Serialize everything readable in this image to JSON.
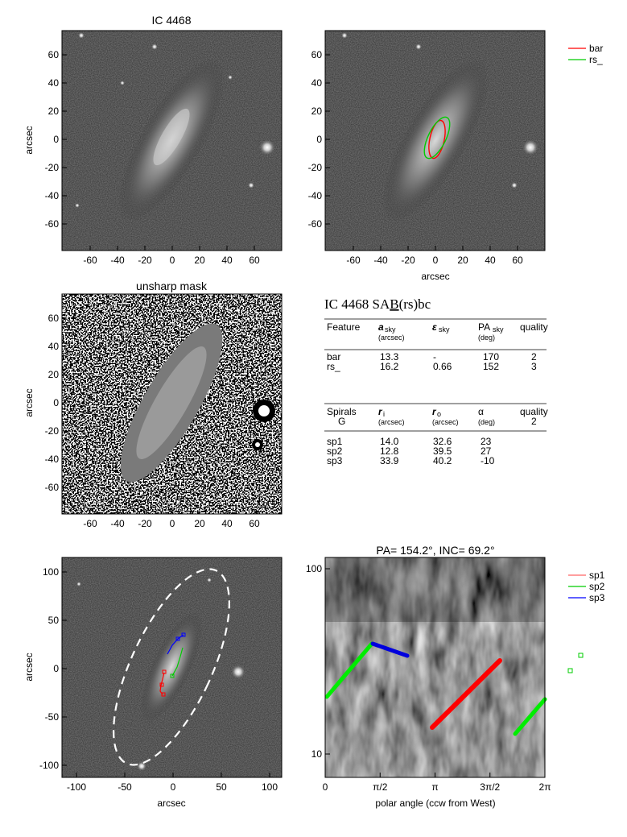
{
  "panel1": {
    "title": "IC 4468",
    "ylabel": "arcsec",
    "xticks": [
      "-60",
      "-40",
      "-20",
      "0",
      "20",
      "40",
      "60"
    ],
    "yticks": [
      "60",
      "40",
      "20",
      "0",
      "-20",
      "-40",
      "-60"
    ]
  },
  "panel2": {
    "xlabel": "arcsec",
    "xticks": [
      "-60",
      "-40",
      "-20",
      "0",
      "20",
      "40",
      "60"
    ],
    "yticks": [
      "60",
      "40",
      "20",
      "0",
      "-20",
      "-40",
      "-60"
    ],
    "legend": [
      {
        "label": "bar",
        "color": "#ff0000"
      },
      {
        "label": "rs_",
        "color": "#00cc00"
      }
    ]
  },
  "panel3": {
    "title": "unsharp mask",
    "ylabel": "arcsec",
    "xticks": [
      "-60",
      "-40",
      "-20",
      "0",
      "20",
      "40",
      "60"
    ],
    "yticks": [
      "60",
      "40",
      "20",
      "0",
      "-20",
      "-40",
      "-60"
    ]
  },
  "table": {
    "heading": "IC 4468  SA",
    "heading_b": "B",
    "heading_tail": "(rs)bc",
    "features_header": {
      "c1": "Feature",
      "c2": "a",
      "c2sub": "sky",
      "c2unit": "(arcsec)",
      "c3": "ε",
      "c3sub": "sky",
      "c4": "PA",
      "c4sub": "sky",
      "c4unit": "(deg)",
      "c5": "quality"
    },
    "features": [
      {
        "name": "bar",
        "a": "13.3",
        "e": "-",
        "pa": "170",
        "q": "2"
      },
      {
        "name": "rs_",
        "a": "16.2",
        "e": "0.66",
        "pa": "152",
        "q": "3"
      }
    ],
    "spirals_header": {
      "c1": "Spirals",
      "c1b": "G",
      "c2": "r",
      "c2sub": "i",
      "c2unit": "(arcsec)",
      "c3": "r",
      "c3sub": "o",
      "c3unit": "(arcsec)",
      "c4": "α",
      "c4unit": "(deg)",
      "c5": "quality",
      "c5b": "2"
    },
    "spirals": [
      {
        "name": "sp1",
        "ri": "14.0",
        "ro": "32.6",
        "alpha": "23"
      },
      {
        "name": "sp2",
        "ri": "12.8",
        "ro": "39.5",
        "alpha": "27"
      },
      {
        "name": "sp3",
        "ri": "33.9",
        "ro": "40.2",
        "alpha": "-10"
      }
    ]
  },
  "panel5": {
    "xlabel": "arcsec",
    "ylabel": "arcsec",
    "xticks": [
      "-100",
      "-50",
      "0",
      "50",
      "100"
    ],
    "yticks": [
      "100",
      "50",
      "0",
      "-50",
      "-100"
    ]
  },
  "panel6": {
    "title": "PA= 154.2°, INC=  69.2°",
    "xlabel": "polar angle (ccw from West)",
    "xticks": [
      "0",
      "π/2",
      "π",
      "3π/2",
      "2π"
    ],
    "yticks": [
      "100",
      "10"
    ],
    "legend": [
      {
        "label": "sp1",
        "color": "#ff6666"
      },
      {
        "label": "sp2",
        "color": "#00cc00"
      },
      {
        "label": "sp3",
        "color": "#0000ff"
      }
    ]
  },
  "colors": {
    "bar": "#ff0000",
    "rs": "#00cc00",
    "sp1": "#ff0000",
    "sp2": "#00ee00",
    "sp3": "#0000dd"
  }
}
